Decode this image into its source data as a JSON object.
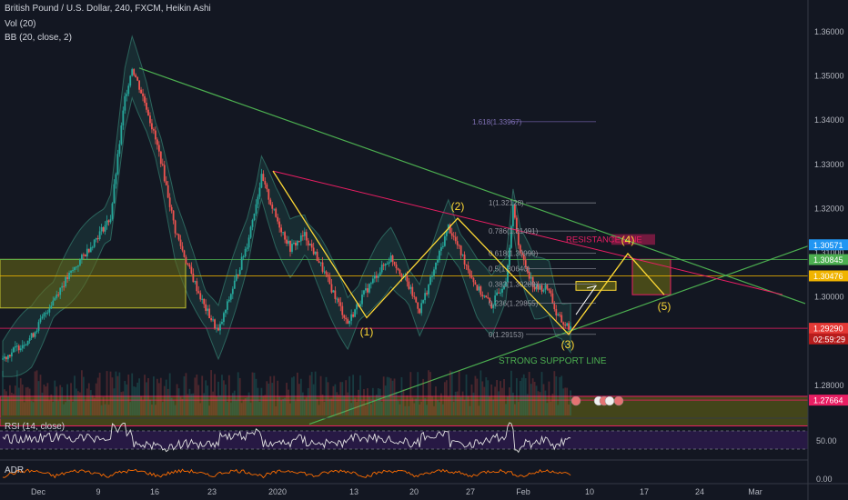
{
  "header": {
    "symbol_line": "British Pound / U.S. Dollar, 240, FXCM, Heikin Ashi",
    "vol": "Vol (20)",
    "bb": "BB (20, close, 2)"
  },
  "panes": {
    "rsi_label": "RSI (14, close)",
    "adr_label": "ADR",
    "rsi_tick": "50.00",
    "adr_tick": "0.00"
  },
  "colors": {
    "background": "#131722",
    "bull": "#26a69a",
    "bear": "#ef5350",
    "bb_fill": "#2e7d6e",
    "trendline": "#4caf50",
    "wave": "#fdd835",
    "resistance": "#e91e63",
    "zone_fill": "#6b6b14",
    "rsi_band": "#2b1a4a",
    "price_tag_blue": "#2196f3",
    "price_tag_green": "#4caf50",
    "price_tag_red": "#e53935"
  },
  "chart_data": {
    "type": "candlestick",
    "title": "British Pound / U.S. Dollar, 240, FXCM, Heikin Ashi",
    "y_ticks": [
      "1.36000",
      "1.35000",
      "1.34000",
      "1.33000",
      "1.32000",
      "1.31000",
      "1.30000",
      "1.29000",
      "1.28000"
    ],
    "ylim": [
      1.2705,
      1.3655
    ],
    "x_ticks": [
      "Dec",
      "9",
      "16",
      "23",
      "2020",
      "13",
      "20",
      "27",
      "Feb",
      "10",
      "17",
      "24",
      "Mar"
    ],
    "price_path": [
      [
        0,
        1.286
      ],
      [
        4,
        1.291
      ],
      [
        8,
        1.302
      ],
      [
        12,
        1.311
      ],
      [
        15,
        1.318
      ],
      [
        17,
        1.345
      ],
      [
        18,
        1.352
      ],
      [
        20,
        1.343
      ],
      [
        22,
        1.331
      ],
      [
        24,
        1.315
      ],
      [
        26,
        1.306
      ],
      [
        28,
        1.298
      ],
      [
        30,
        1.292
      ],
      [
        32,
        1.302
      ],
      [
        34,
        1.312
      ],
      [
        36,
        1.327
      ],
      [
        38,
        1.318
      ],
      [
        40,
        1.311
      ],
      [
        42,
        1.314
      ],
      [
        44,
        1.308
      ],
      [
        46,
        1.301
      ],
      [
        48,
        1.294
      ],
      [
        50,
        1.3
      ],
      [
        52,
        1.305
      ],
      [
        54,
        1.309
      ],
      [
        56,
        1.304
      ],
      [
        58,
        1.297
      ],
      [
        60,
        1.306
      ],
      [
        62,
        1.316
      ],
      [
        64,
        1.309
      ],
      [
        66,
        1.302
      ],
      [
        68,
        1.298
      ],
      [
        70,
        1.304
      ],
      [
        71,
        1.32
      ],
      [
        72,
        1.31
      ],
      [
        74,
        1.302
      ],
      [
        76,
        1.302
      ],
      [
        77,
        1.296
      ],
      [
        78,
        1.294
      ],
      [
        79,
        1.293
      ]
    ],
    "horizontal_lines": [
      {
        "price": 1.30845,
        "tag": "1.30845",
        "tag_color": "#4caf50"
      },
      {
        "price": 1.30476,
        "tag": "1.30476",
        "tag_color": "#f0b400"
      },
      {
        "price": 1.2929,
        "tag": "1.29290",
        "tag_color": "#e53935"
      },
      {
        "price": 1.27664,
        "tag": "1.27664",
        "tag_color": "#e91e63"
      }
    ],
    "current_price_tag": "1.30571",
    "countdown_tag": "02:59:29",
    "fibonacci": [
      {
        "label": "1.618(1.33967)",
        "price": 1.33967
      },
      {
        "label": "1(1.32128)",
        "price": 1.32128
      },
      {
        "label": "0.786(1.31491)",
        "price": 1.31491
      },
      {
        "label": "0.618(1.30990)",
        "price": 1.3099
      },
      {
        "label": "0.5(1.30640)",
        "price": 1.3064
      },
      {
        "label": "0.382(1.30289)",
        "price": 1.30289
      },
      {
        "label": "0.236(1.29855)",
        "price": 1.29855
      },
      {
        "label": "0(1.29153)",
        "price": 1.29153
      }
    ],
    "waves": [
      {
        "label": "(1)",
        "x": 43,
        "price": 1.2953
      },
      {
        "label": "(2)",
        "x": 54,
        "price": 1.3178
      },
      {
        "label": "(3)",
        "x": 67,
        "price": 1.2915
      },
      {
        "label": "(4)",
        "x": 74,
        "price": 1.3095
      },
      {
        "label": "(5)",
        "x": 78,
        "price": 1.3005
      }
    ],
    "annotations": {
      "resistance": "RESISTANCE LINE",
      "support": "STRONG SUPPORT LINE"
    }
  }
}
